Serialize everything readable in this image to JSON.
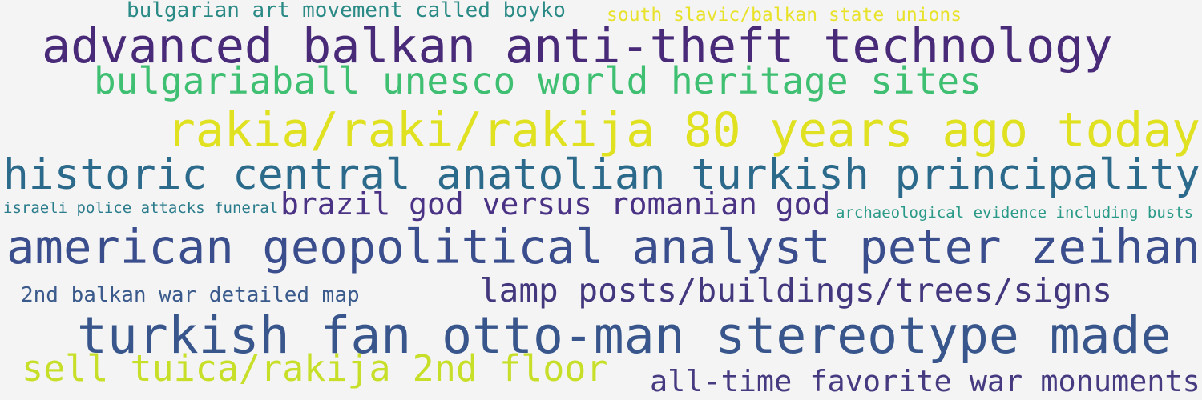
{
  "phrases": [
    {
      "text": "bulgarian art movement called boyko",
      "color": "#2a8a86"
    },
    {
      "text": "south slavic/balkan state unions",
      "color": "#e8e22a"
    },
    {
      "text": "advanced balkan anti-theft technology",
      "color": "#482a78"
    },
    {
      "text": "bulgariaball unesco world heritage sites",
      "color": "#3fbf72"
    },
    {
      "text": "rakia/raki/rakija 80 years ago today",
      "color": "#e0e120"
    },
    {
      "text": "historic central anatolian turkish principality",
      "color": "#2c6a8c"
    },
    {
      "text": "israeli police attacks funeral",
      "color": "#2a7c8c"
    },
    {
      "text": "brazil god versus romanian god",
      "color": "#4a3284"
    },
    {
      "text": "archaeological evidence including busts",
      "color": "#2a9a88"
    },
    {
      "text": "american geopolitical analyst peter zeihan",
      "color": "#3a4d8c"
    },
    {
      "text": "2nd balkan war detailed map",
      "color": "#3a5a8c"
    },
    {
      "text": "lamp posts/buildings/trees/signs",
      "color": "#43387e"
    },
    {
      "text": "turkish fan otto-man stereotype made",
      "color": "#38568c"
    },
    {
      "text": "sell tuica/rakija 2nd floor",
      "color": "#c8df2a"
    },
    {
      "text": "all-time favorite war monuments",
      "color": "#473a80"
    }
  ]
}
